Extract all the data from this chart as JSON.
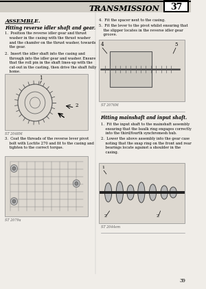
{
  "bg_color": "#f0ede8",
  "title_text": "TRANSMISSION",
  "page_num": "37",
  "section_title": "ASSEMBLE.",
  "subsection1": "Fitting reverse idler shaft and gear.",
  "body_text_col1": [
    "1.  Position the reverse idler gear and thrust\n    washer in the casing with the thrust washer\n    and the chamfer on the thrust washer, towards\n    the gear.",
    "2.  Insert the idler shaft into the casing and\n    through into the idler gear and washer. Ensure\n    that the roll pin in the shaft lines-up with the\n    cut-out in the casting, then drive the shaft fully\n    home.",
    "3.  Coat the threads of the reverse lever pivot\n    bolt with Loctite 270 and fit to the casing and\n    tighten to the correct torque."
  ],
  "caption1": "ST 2048M",
  "caption2": "ST 2079a",
  "body_text_col2": [
    "4.  Fit the spacer next to the casing.",
    "5.  Fit the lever to the pivot whilst ensuring that\n    the slipper locates in the reverse idler gear\n    groove."
  ],
  "caption3": "ST 2076M",
  "subsection2": "Fitting mainshaft and input shaft.",
  "body_text_col2b": [
    "1.  Fit the input shaft to the mainshaft assembly\n    ensuring that the baulk ring engages correctly\n    into the third/fourth synchromesh hub.",
    "2.  Lower the above assembly into the gear case\n    noting that the snap ring on the front and rear\n    bearings locate against a shoulder in the\n    casing."
  ],
  "caption4": "ST 2044em",
  "page_number": "39"
}
